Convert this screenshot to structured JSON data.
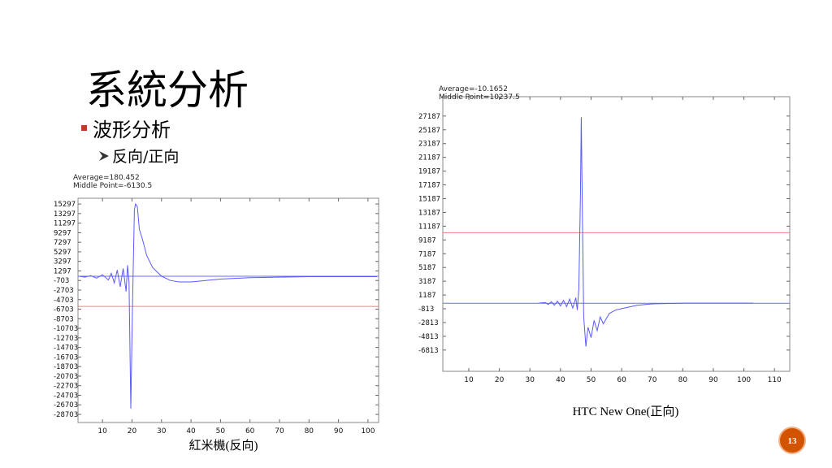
{
  "slide": {
    "title": "系統分析",
    "bullet": "波形分析",
    "sub_bullet": "反向/正向",
    "page_number": "13"
  },
  "chart_data": [
    {
      "type": "line",
      "caption": "紅米機(反向)",
      "annotations": [
        "Average=180.452",
        "Middle Point=-6130.5"
      ],
      "x": [
        2,
        4,
        6,
        8,
        10,
        12,
        13,
        14,
        15,
        16,
        17,
        18,
        18.5,
        19,
        19.6,
        20.2,
        20.8,
        21.2,
        21.8,
        22.5,
        23.5,
        25,
        27,
        30,
        33,
        36,
        40,
        45,
        50,
        60,
        70,
        80,
        90,
        103
      ],
      "values": [
        200,
        0,
        300,
        -200,
        500,
        -600,
        800,
        -1200,
        1500,
        -2000,
        1800,
        -3000,
        2500,
        -1000,
        -27500,
        -5000,
        14000,
        15300,
        14800,
        10000,
        8000,
        4500,
        2000,
        200,
        -700,
        -1000,
        -1000,
        -700,
        -400,
        -100,
        0,
        100,
        100,
        100
      ],
      "color": "#5a5aff",
      "hlines": [
        {
          "value": 180.452,
          "color": "#6a6aff"
        },
        {
          "value": -6130.5,
          "color": "#f08080"
        }
      ],
      "xlim": [
        1.7,
        103.6
      ],
      "xticks": [
        10,
        20,
        30,
        40,
        50,
        60,
        70,
        80,
        90,
        100
      ],
      "ylim": [
        -30400,
        16500
      ],
      "yticks": [
        15297,
        13297,
        11297,
        9297,
        7297,
        5297,
        3297,
        1297,
        -703,
        -2703,
        -4703,
        -6703,
        -8703,
        -10703,
        -12703,
        -14703,
        -16703,
        -18703,
        -20703,
        -22703,
        -24703,
        -26703,
        -28703
      ]
    },
    {
      "type": "line",
      "caption": "HTC New One(正向)",
      "annotations": [
        "Average=-10.1652",
        "Middle Point=10237.5"
      ],
      "x": [
        33,
        35,
        36,
        37,
        38,
        39,
        40,
        41,
        42,
        43,
        44,
        45,
        45.5,
        46,
        46.5,
        46.8,
        47.2,
        47.6,
        48.3,
        49,
        50,
        51,
        52,
        53,
        54,
        56,
        58,
        60,
        65,
        70,
        80,
        90,
        103
      ],
      "values": [
        0,
        100,
        -200,
        200,
        -300,
        300,
        -400,
        400,
        -500,
        600,
        -700,
        800,
        -1000,
        2000,
        15000,
        27000,
        12000,
        -2000,
        -6300,
        -3500,
        -5000,
        -2500,
        -4000,
        -2000,
        -3000,
        -1500,
        -1000,
        -800,
        -300,
        -100,
        0,
        0,
        0
      ],
      "color": "#5a5aff",
      "hlines": [
        {
          "value": -10.1652,
          "color": "#6a6aff"
        },
        {
          "value": 10237.5,
          "color": "#f08080"
        }
      ],
      "xlim": [
        1.5,
        115
      ],
      "xticks": [
        10,
        20,
        30,
        40,
        50,
        60,
        70,
        80,
        90,
        100,
        110
      ],
      "ylim": [
        -9900,
        30000
      ],
      "yticks": [
        27187,
        25187,
        23187,
        21187,
        19187,
        17187,
        15187,
        13187,
        11187,
        9187,
        7187,
        5187,
        3187,
        1187,
        -813,
        -2813,
        -4813,
        -6813
      ]
    }
  ]
}
